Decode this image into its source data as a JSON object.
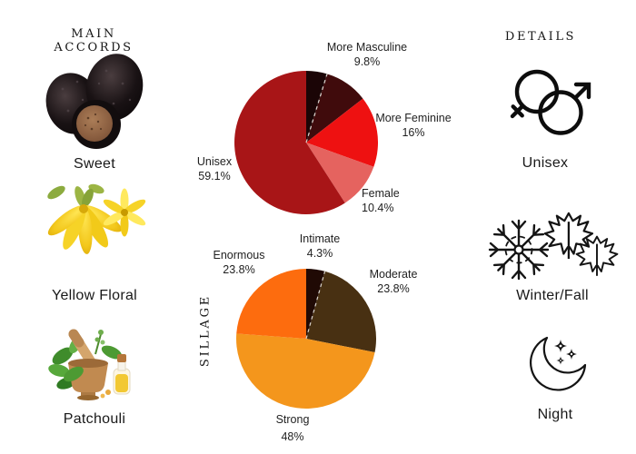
{
  "page": {
    "background": "#ffffff",
    "text_color": "#1c1c1c"
  },
  "left_panel": {
    "title": "MAIN ACCORDS",
    "accords": [
      {
        "label": "Sweet",
        "icon": "truffle-image"
      },
      {
        "label": "Yellow Floral",
        "icon": "ylang-ylang-flower-image"
      },
      {
        "label": "Patchouli",
        "icon": "mortar-pestle-herbs-image"
      }
    ]
  },
  "right_panel": {
    "title": "DETAILS",
    "details": [
      {
        "label": "Unisex",
        "icon": "male-female-symbol-icon"
      },
      {
        "label": "Winter/Fall",
        "icon": "snowflake-maple-leaves-icon"
      },
      {
        "label": "Night",
        "icon": "crescent-moon-stars-icon"
      }
    ]
  },
  "chart_data": [
    {
      "type": "pie",
      "name": "gender-votes",
      "title": "",
      "legend_position": "none",
      "start_angle_deg": -90,
      "direction": "clockwise",
      "slices": [
        {
          "label": "",
          "display": "",
          "value": 4.7,
          "color": "#1b0506"
        },
        {
          "label": "More Masculine",
          "display": "9.8%",
          "value": 9.8,
          "color": "#400b0c"
        },
        {
          "label": "More Feminine",
          "display": "16%",
          "value": 16,
          "color": "#ee1111"
        },
        {
          "label": "Female",
          "display": "10.4%",
          "value": 10.4,
          "color": "#e5635f"
        },
        {
          "label": "Unisex",
          "display": "59.1%",
          "value": 59.1,
          "color": "#a81517"
        }
      ]
    },
    {
      "type": "pie",
      "name": "sillage",
      "title": "SILLAGE",
      "legend_position": "none",
      "start_angle_deg": -90,
      "direction": "clockwise",
      "slices": [
        {
          "label": "Intimate",
          "display": "4.3%",
          "value": 4.3,
          "color": "#200a05"
        },
        {
          "label": "Moderate",
          "display": "23.8%",
          "value": 23.8,
          "color": "#483012"
        },
        {
          "label": "Strong",
          "display": "48%",
          "value": 48,
          "color": "#f4961c"
        },
        {
          "label": "Enormous",
          "display": "23.8%",
          "value": 23.8,
          "color": "#fd6c0e"
        }
      ]
    }
  ]
}
